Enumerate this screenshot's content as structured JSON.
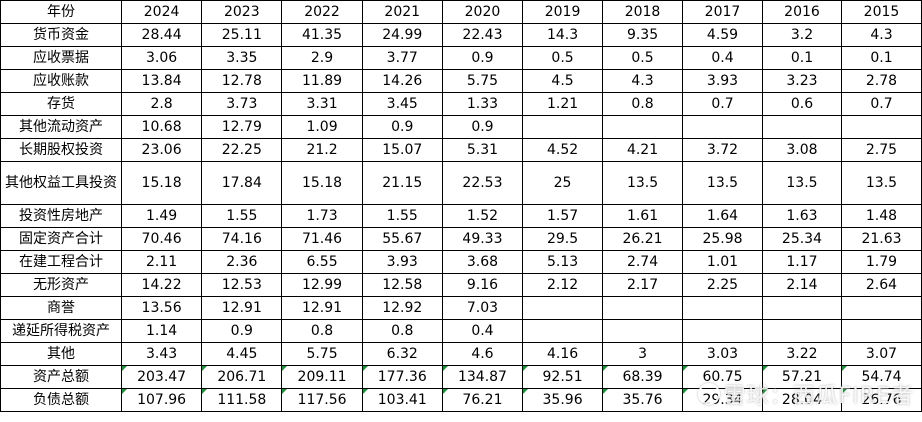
{
  "table": {
    "header_label": "年份",
    "years": [
      "2024",
      "2023",
      "2022",
      "2021",
      "2020",
      "2019",
      "2018",
      "2017",
      "2016",
      "2015"
    ],
    "rows": [
      {
        "label": "货币资金",
        "values": [
          "28.44",
          "25.11",
          "41.35",
          "24.99",
          "22.43",
          "14.3",
          "9.35",
          "4.59",
          "3.2",
          "4.3"
        ]
      },
      {
        "label": "应收票据",
        "values": [
          "3.06",
          "3.35",
          "2.9",
          "3.77",
          "0.9",
          "0.5",
          "0.5",
          "0.4",
          "0.1",
          "0.1"
        ]
      },
      {
        "label": "应收账款",
        "values": [
          "13.84",
          "12.78",
          "11.89",
          "14.26",
          "5.75",
          "4.5",
          "4.3",
          "3.93",
          "3.23",
          "2.78"
        ]
      },
      {
        "label": "存货",
        "values": [
          "2.8",
          "3.73",
          "3.31",
          "3.45",
          "1.33",
          "1.21",
          "0.8",
          "0.7",
          "0.6",
          "0.7"
        ]
      },
      {
        "label": "其他流动资产",
        "values": [
          "10.68",
          "12.79",
          "1.09",
          "0.9",
          "0.9",
          "",
          "",
          "",
          "",
          ""
        ]
      },
      {
        "label": "长期股权投资",
        "values": [
          "23.06",
          "22.25",
          "21.2",
          "15.07",
          "5.31",
          "4.52",
          "4.21",
          "3.72",
          "3.08",
          "2.75"
        ]
      },
      {
        "label": "其他权益工具投资",
        "values": [
          "15.18",
          "17.84",
          "15.18",
          "21.15",
          "22.53",
          "25",
          "13.5",
          "13.5",
          "13.5",
          "13.5"
        ]
      },
      {
        "label": "投资性房地产",
        "values": [
          "1.49",
          "1.55",
          "1.73",
          "1.55",
          "1.52",
          "1.57",
          "1.61",
          "1.64",
          "1.63",
          "1.48"
        ]
      },
      {
        "label": "固定资产合计",
        "values": [
          "70.46",
          "74.16",
          "71.46",
          "55.67",
          "49.33",
          "29.5",
          "26.21",
          "25.98",
          "25.34",
          "21.63"
        ]
      },
      {
        "label": "在建工程合计",
        "values": [
          "2.11",
          "2.36",
          "6.55",
          "3.93",
          "3.68",
          "5.13",
          "2.74",
          "1.01",
          "1.17",
          "1.79"
        ]
      },
      {
        "label": "无形资产",
        "values": [
          "14.22",
          "12.53",
          "12.99",
          "12.58",
          "9.16",
          "2.12",
          "2.17",
          "2.25",
          "2.14",
          "2.64"
        ]
      },
      {
        "label": "商誉",
        "values": [
          "13.56",
          "12.91",
          "12.91",
          "12.92",
          "7.03",
          "",
          "",
          "",
          "",
          ""
        ]
      },
      {
        "label": "递延所得税资产",
        "values": [
          "1.14",
          "0.9",
          "0.8",
          "0.8",
          "0.4",
          "",
          "",
          "",
          "",
          ""
        ]
      },
      {
        "label": "其他",
        "values": [
          "3.43",
          "4.45",
          "5.75",
          "6.32",
          "4.6",
          "4.16",
          "3",
          "3.03",
          "3.22",
          "3.07"
        ]
      },
      {
        "label": "资产总额",
        "values": [
          "203.47",
          "206.71",
          "209.11",
          "177.36",
          "134.87",
          "92.51",
          "68.39",
          "60.75",
          "57.21",
          "54.74"
        ]
      },
      {
        "label": "负债总额",
        "values": [
          "107.96",
          "111.58",
          "117.56",
          "103.41",
          "76.21",
          "35.96",
          "35.76",
          "29.34",
          "28.04",
          "26.76"
        ]
      }
    ]
  },
  "watermark": {
    "text": "雪球：西瓜FIRE者"
  },
  "colors": {
    "grid": "#000000",
    "error_indicator": "#1f8f3a"
  }
}
